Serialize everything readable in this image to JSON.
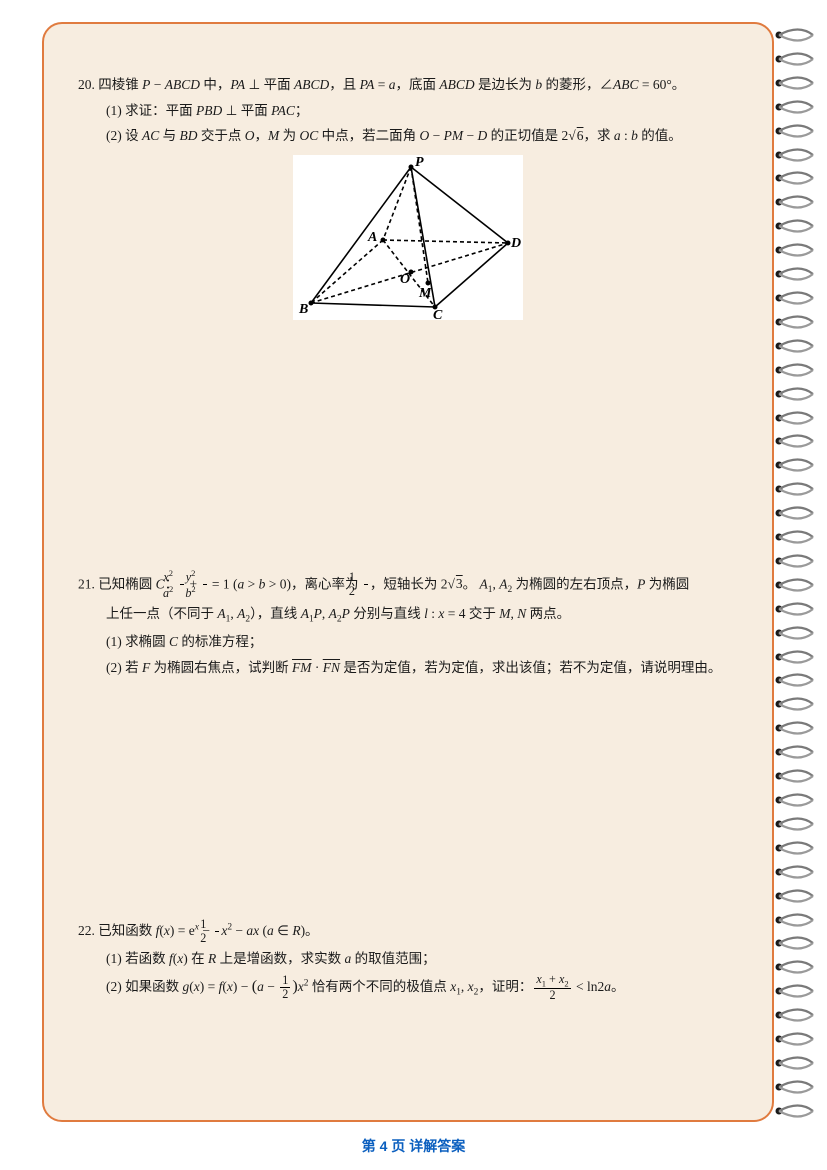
{
  "page": {
    "background_color": "#ffffff",
    "paper_color": "#f7ede0",
    "border_color": "#e07b3f",
    "text_color": "#1a1a1a",
    "link_color": "#0b5fbf",
    "body_fontsize": 13.5,
    "footer_fontsize": 14
  },
  "problems": {
    "p20": {
      "number": "20.",
      "stem": "四棱锥 P − ABCD 中，PA ⊥ 平面 ABCD，且 PA = a，底面 ABCD 是边长为 b 的菱形，∠ABC = 60°。",
      "q1": "(1) 求证：平面 PBD ⊥ 平面 PAC；",
      "q2": "(2) 设 AC 与 BD 交于点 O，M 为 OC 中点，若二面角 O − PM − D 的正切值是 2√6，求 a : b 的值。",
      "diagram": {
        "type": "geometry-3d",
        "labels": [
          "P",
          "A",
          "B",
          "C",
          "D",
          "O",
          "M"
        ],
        "line_color": "#000000",
        "line_width": 1.6,
        "background": "#ffffff"
      }
    },
    "p21": {
      "number": "21.",
      "stem_pre": "已知椭圆 C：",
      "stem_post": " = 1 (a > b > 0)，离心率为 ",
      "stem_tail": "，短轴长为 2√3。 A₁, A₂ 为椭圆的左右顶点，P 为椭圆",
      "line2": "上任一点（不同于 A₁, A₂），直线 A₁P, A₂P 分别与直线 l : x = 4 交于 M, N 两点。",
      "q1": "(1) 求椭圆 C 的标准方程；",
      "q2": "(2) 若 F 为椭圆右焦点，试判断 FM · FN 是否为定值，若为定值，求出该值；若不为定值，请说明理由。",
      "frac1": {
        "num": "x²",
        "den": "a²"
      },
      "frac2": {
        "num": "y²",
        "den": "b²"
      },
      "frac3": {
        "num": "1",
        "den": "2"
      }
    },
    "p22": {
      "number": "22.",
      "stem_pre": "已知函数 f(x) = eˣ − ",
      "stem_post": "x² − ax (a ∈ R)。",
      "q1": "(1) 若函数 f(x) 在 R 上是增函数，求实数 a 的取值范围；",
      "q2_pre": "(2) 如果函数 g(x) = f(x) − (a − ",
      "q2_mid": ") x² 恰有两个不同的极值点 x₁, x₂，证明：",
      "q2_post": " < ln2a。",
      "frac1": {
        "num": "1",
        "den": "2"
      },
      "frac2": {
        "num": "1",
        "den": "2"
      },
      "frac3": {
        "num": "x₁ + x₂",
        "den": "2"
      }
    }
  },
  "footer": {
    "page_label": "第 4 页 ",
    "link_text": "详解答案"
  }
}
